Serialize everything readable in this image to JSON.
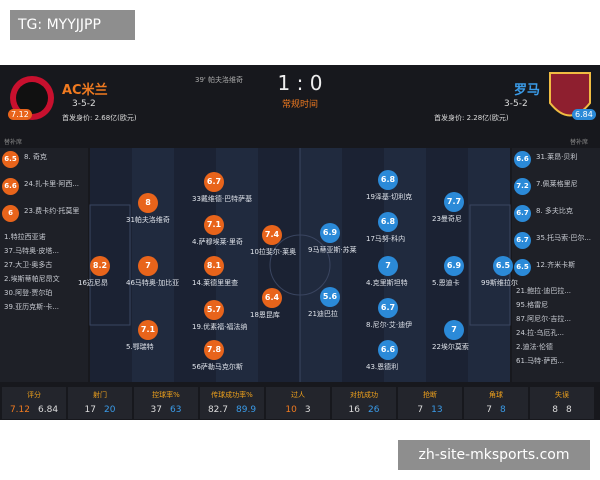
{
  "watermark": "TG: MYYJJPP",
  "footer_label": "zh-site-mksports.com",
  "header": {
    "event": "39' 帕夫洛维奇",
    "score": "1 : 0",
    "status": "常规时间"
  },
  "home": {
    "name": "AC米兰",
    "rating": 7.12,
    "formation": "3-5-2",
    "value": "首发身价: 2.68亿(欧元)",
    "subs_title": "替补席"
  },
  "away": {
    "name": "罗马",
    "rating": 6.84,
    "formation": "3-5-2",
    "value": "首发身价: 2.28亿(欧元)",
    "subs_title": "替补席"
  },
  "home_subs": [
    {
      "rating": 6.5,
      "name": "8. 奇克"
    },
    {
      "rating": 6.6,
      "name": "24.扎卡里·阿西..."
    },
    {
      "rating": 6,
      "name": "23.费卡约·托莫里"
    },
    {
      "name": "1.特拉西亚诺"
    },
    {
      "name": "37.马特奥·皮塔..."
    },
    {
      "name": "27.大卫·奥多古"
    },
    {
      "name": "2.埃斯蒂帕尼昂文"
    },
    {
      "name": "30.阿登·贾尔珀"
    },
    {
      "name": "39.亚历克斯·卡..."
    }
  ],
  "away_subs": [
    {
      "rating": 6.6,
      "name": "31.莱昂·贝利"
    },
    {
      "rating": 7.2,
      "name": "7.佩莱格里尼"
    },
    {
      "rating": 6.7,
      "name": "8. 多夫比克"
    },
    {
      "rating": 6.7,
      "name": "35.托马索·巴尔..."
    },
    {
      "rating": 6.5,
      "name": "12.齐米卡斯"
    },
    {
      "name": "21.鲍拉·迪巴拉..."
    },
    {
      "name": "95.格雷尼"
    },
    {
      "name": "87.阿尼尔·吉拉..."
    },
    {
      "name": "24.拉·乌厄孔..."
    },
    {
      "name": "2.迪法·伦德"
    },
    {
      "name": "61.马特·萨西..."
    }
  ],
  "home_players": [
    {
      "rating": 8.2,
      "name": "16迈尼昂"
    },
    {
      "rating": 8,
      "name": "31帕夫洛维奇"
    },
    {
      "rating": 7,
      "name": "46马特奥·加比亚"
    },
    {
      "rating": 7.1,
      "name": "5.鄂瑞特"
    },
    {
      "rating": 6.7,
      "name": "33戴维德·巴特萨基"
    },
    {
      "rating": 7.1,
      "name": "4.萨穆埃莱·里奇"
    },
    {
      "rating": 8.1,
      "name": "14.莱德里里查"
    },
    {
      "rating": 5.7,
      "name": "19.优素福·福法纳"
    },
    {
      "rating": 7.8,
      "name": "56萨勒马克尔斯"
    },
    {
      "rating": 7.4,
      "name": "10拉斐尔·莱奥"
    },
    {
      "rating": 6.4,
      "name": "18恩昆库"
    }
  ],
  "away_players": [
    {
      "rating": 6.9,
      "name": "9马蒂亚斯·苏莱"
    },
    {
      "rating": 5.6,
      "name": "21迪巴拉"
    },
    {
      "rating": 6.8,
      "name": "19泽基·切利克"
    },
    {
      "rating": 6.8,
      "name": "17马努·科内"
    },
    {
      "rating": 7,
      "name": "4.克里斯坦特"
    },
    {
      "rating": 6.7,
      "name": "8.尼尔·艾·迪伊"
    },
    {
      "rating": 6.6,
      "name": "43.恩德利"
    },
    {
      "rating": 7.7,
      "name": "23曼奇尼"
    },
    {
      "rating": 6.9,
      "name": "5.恩迪卡"
    },
    {
      "rating": 7,
      "name": "22埃尔莫索"
    },
    {
      "rating": 6.5,
      "name": "99斯维拉尔"
    }
  ],
  "stats": [
    {
      "label": "评分",
      "home": 7.12,
      "away": 6.84
    },
    {
      "label": "射门",
      "home": 17,
      "away": 20
    },
    {
      "label": "控球率%",
      "home": 37,
      "away": 63
    },
    {
      "label": "传球成功率%",
      "home": 82.7,
      "away": 89.9
    },
    {
      "label": "过人",
      "home": 10,
      "away": 3
    },
    {
      "label": "对抗成功",
      "home": 16,
      "away": 26
    },
    {
      "label": "抢断",
      "home": 7,
      "away": 13
    },
    {
      "label": "角球",
      "home": 7,
      "away": 8
    },
    {
      "label": "失误",
      "home": 8,
      "away": 8
    }
  ]
}
